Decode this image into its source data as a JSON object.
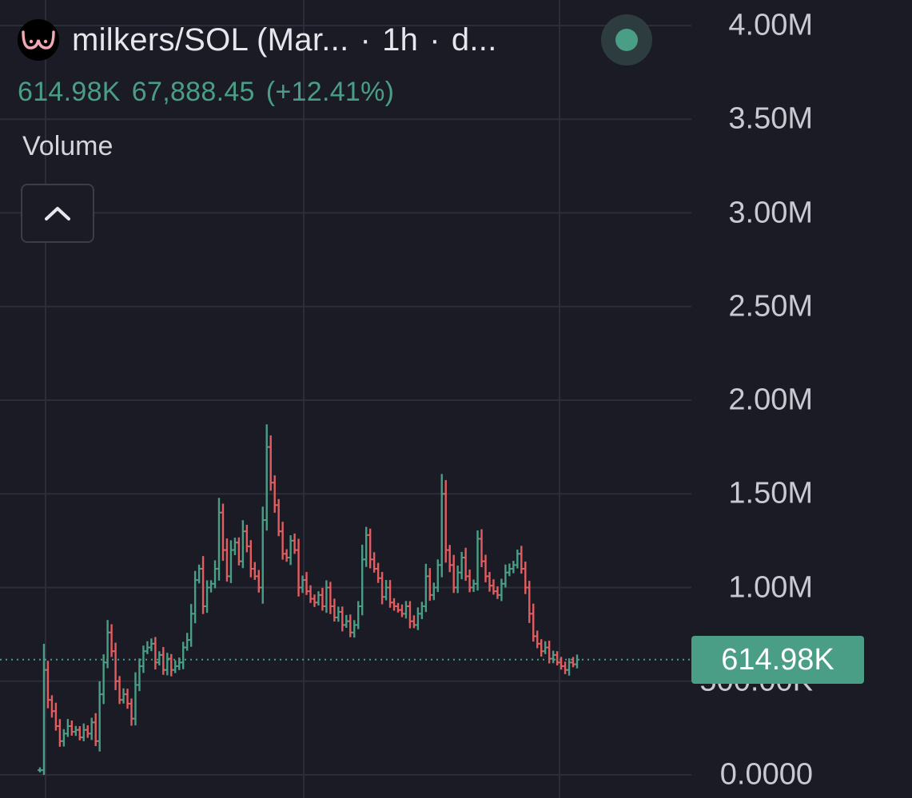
{
  "header": {
    "pair": "milkers/SOL (Mar...",
    "sep1": "·",
    "interval": "1h",
    "sep2": "·",
    "source": "d..."
  },
  "legend": {
    "last_value": "614.98K",
    "change": "67,888.45",
    "change_pct": "(+12.41%)"
  },
  "indicator": {
    "label": "Volume"
  },
  "price_badge": "614.98K",
  "colors": {
    "background": "#1a1b25",
    "up": "#4a9e86",
    "down": "#e15d5f",
    "grid": "#2b2d39",
    "axis_text": "#c9cad1"
  },
  "icons": {
    "logo": "milkers-logo-icon",
    "status": "status-dot-icon",
    "collapse": "chevron-up-icon"
  },
  "chart_data": {
    "type": "ohlc",
    "interval": "1h",
    "ylim": [
      0,
      4000000
    ],
    "y_ticks": [
      {
        "value": 4000000,
        "label": "4.00M"
      },
      {
        "value": 3500000,
        "label": "3.50M"
      },
      {
        "value": 3000000,
        "label": "3.00M"
      },
      {
        "value": 2500000,
        "label": "2.50M"
      },
      {
        "value": 2000000,
        "label": "2.00M"
      },
      {
        "value": 1500000,
        "label": "1.50M"
      },
      {
        "value": 1000000,
        "label": "1.00M"
      },
      {
        "value": 500000,
        "label": "500.00K"
      },
      {
        "value": 0,
        "label": "0.0000"
      }
    ],
    "last_price": 614980,
    "grid": true,
    "closes": [
      25000,
      560000,
      400000,
      340000,
      260000,
      180000,
      220000,
      260000,
      230000,
      240000,
      200000,
      240000,
      220000,
      280000,
      180000,
      430000,
      600000,
      760000,
      660000,
      500000,
      400000,
      430000,
      380000,
      300000,
      480000,
      580000,
      660000,
      680000,
      700000,
      600000,
      640000,
      560000,
      620000,
      560000,
      580000,
      600000,
      680000,
      720000,
      860000,
      1040000,
      1100000,
      900000,
      1000000,
      1020000,
      1100000,
      1400000,
      1200000,
      1060000,
      1200000,
      1240000,
      1140000,
      1300000,
      1220000,
      1100000,
      1060000,
      1000000,
      1360000,
      1750000,
      1560000,
      1440000,
      1300000,
      1180000,
      1160000,
      1250000,
      1200000,
      1000000,
      1040000,
      980000,
      940000,
      920000,
      960000,
      900000,
      1000000,
      900000,
      840000,
      870000,
      800000,
      820000,
      760000,
      800000,
      900000,
      1150000,
      1280000,
      1150000,
      1100000,
      1050000,
      950000,
      1000000,
      920000,
      900000,
      880000,
      860000,
      900000,
      820000,
      800000,
      860000,
      900000,
      1060000,
      960000,
      1000000,
      1120000,
      1500000,
      1200000,
      1120000,
      1000000,
      1080000,
      1160000,
      1060000,
      1000000,
      1020000,
      1260000,
      1140000,
      1060000,
      1010000,
      980000,
      960000,
      1020000,
      1080000,
      1100000,
      1120000,
      1180000,
      1100000,
      1000000,
      860000,
      740000,
      700000,
      660000,
      680000,
      620000,
      640000,
      600000,
      580000,
      560000,
      600000,
      590000,
      614980
    ]
  }
}
